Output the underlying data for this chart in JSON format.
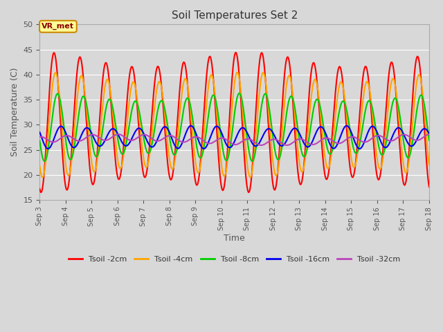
{
  "title": "Soil Temperatures Set 2",
  "xlabel": "Time",
  "ylabel": "Soil Temperature (C)",
  "ylim": [
    15,
    50
  ],
  "xlim": [
    0,
    15
  ],
  "xtick_labels": [
    "Sep 3",
    "Sep 4",
    "Sep 5",
    "Sep 6",
    "Sep 7",
    "Sep 8",
    "Sep 9",
    "Sep 10",
    "Sep 11",
    "Sep 12",
    "Sep 13",
    "Sep 14",
    "Sep 15",
    "Sep 16",
    "Sep 17",
    "Sep 18"
  ],
  "annotation_text": "VR_met",
  "series": {
    "Tsoil -2cm": {
      "color": "#ff0000",
      "lw": 1.5
    },
    "Tsoil -4cm": {
      "color": "#ffa500",
      "lw": 1.5
    },
    "Tsoil -8cm": {
      "color": "#00cc00",
      "lw": 1.5
    },
    "Tsoil -16cm": {
      "color": "#0000ee",
      "lw": 1.5
    },
    "Tsoil -32cm": {
      "color": "#bb44bb",
      "lw": 1.5
    }
  },
  "bg_color": "#d8d8d8",
  "plot_bg_color": "#d8d8d8",
  "grid_color": "#ffffff"
}
